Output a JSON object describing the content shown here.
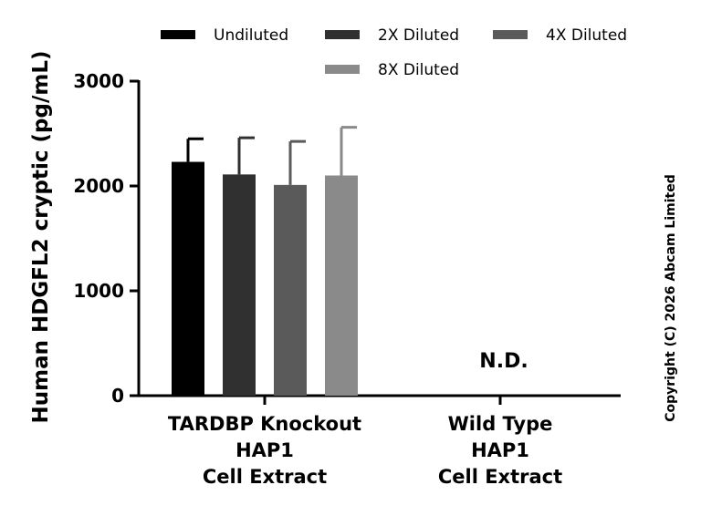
{
  "chart_data": {
    "type": "bar",
    "ylabel": "Human HDGFL2 cryptic (pg/mL)",
    "ylim": [
      0,
      3000
    ],
    "yticks": [
      "0",
      "1000",
      "2000",
      "3000"
    ],
    "categories": [
      [
        "TARDBP Knockout",
        "HAP1",
        "Cell Extract"
      ],
      [
        "Wild Type",
        "HAP1",
        "Cell Extract"
      ]
    ],
    "series": [
      {
        "name": "Undiluted",
        "color": "#000000",
        "values": [
          2230,
          null
        ],
        "errors": [
          220,
          null
        ]
      },
      {
        "name": "2X Diluted",
        "color": "#303030",
        "values": [
          2110,
          null
        ],
        "errors": [
          350,
          null
        ]
      },
      {
        "name": "4X Diluted",
        "color": "#5a5a5a",
        "values": [
          2010,
          null
        ],
        "errors": [
          415,
          null
        ]
      },
      {
        "name": "8X Diluted",
        "color": "#8a8a8a",
        "values": [
          2100,
          null
        ],
        "errors": [
          460,
          null
        ]
      }
    ],
    "annotations": [
      "N.D."
    ],
    "grid": false,
    "legend_position": "top"
  },
  "copyright": "Copyright (C) 2026 Abcam Limited"
}
